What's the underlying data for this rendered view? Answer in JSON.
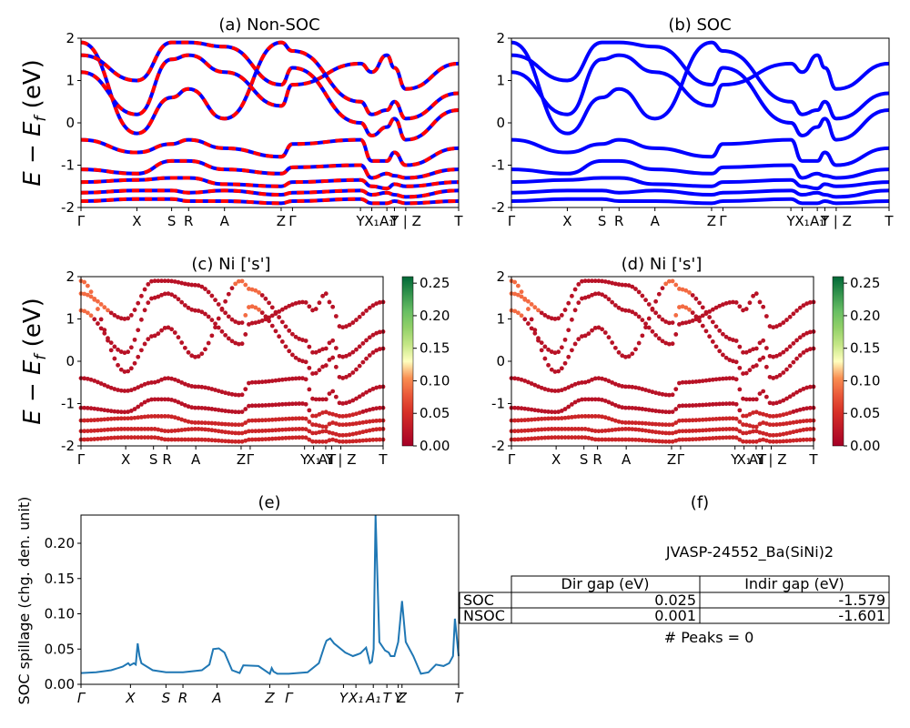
{
  "panels": {
    "a": {
      "title": "(a) Non-SOC"
    },
    "b": {
      "title": "(b) SOC"
    },
    "c": {
      "title": "(c)  Ni ['s']"
    },
    "d": {
      "title": "(d) Ni ['s']"
    },
    "e": {
      "title": "(e)"
    },
    "f": {
      "title": "(f)"
    }
  },
  "band_ylabel": "E − E_f (eV)",
  "band_ylabel_main": "E − E",
  "band_ylabel_sub": "f",
  "band_ylabel_unit": " (eV)",
  "kpath_labels_band": [
    "Γ",
    "X",
    "S",
    "R",
    "A",
    "Z",
    "Γ",
    "Y",
    "X₁",
    "A₁",
    "T",
    "Y | Z",
    "T"
  ],
  "kpath_labels_spillage": [
    "Γ",
    "X",
    "S",
    "R",
    "A",
    "Z",
    "Γ",
    "Y",
    "X₁",
    "A₁",
    "T",
    "Y",
    "Z",
    "T"
  ],
  "colorbar": {
    "ticks": [
      "0.25",
      "0.20",
      "0.15",
      "0.10",
      "0.05",
      "0.00"
    ],
    "cmap": "RdYlGn"
  },
  "colors": {
    "non_soc_up": "#0000ff",
    "non_soc_dn": "#ff0000",
    "soc": "#0000ff",
    "spillage": "#1f77b4"
  },
  "table": {
    "material": "JVASP-24552_Ba(SiNi)2",
    "headers": [
      "",
      "Dir gap (eV)",
      "Indir gap (eV)"
    ],
    "rows": [
      {
        "label": "SOC",
        "dir": "0.025",
        "indir": "-1.579"
      },
      {
        "label": "NSOC",
        "dir": "0.001",
        "indir": "-1.601"
      }
    ],
    "peaks": "# Peaks = 0"
  },
  "chart_data": [
    {
      "type": "line",
      "title": "(a) Non-SOC",
      "ylabel": "E − E_f (eV)",
      "ylim": [
        -2,
        2
      ],
      "yticks": [
        -2,
        -1,
        0,
        1,
        2
      ],
      "x_labels": [
        "Γ",
        "X",
        "S",
        "R",
        "A",
        "Z",
        "Γ",
        "Y",
        "X₁",
        "A₁",
        "T",
        "Y | Z",
        "T"
      ],
      "x_label_positions": [
        0,
        0.148,
        0.24,
        0.285,
        0.38,
        0.53,
        0.56,
        0.74,
        0.77,
        0.81,
        0.83,
        0.86,
        1.0
      ],
      "series": [
        {
          "values_at_kpoints": [
            1.9,
            -0.25,
            0.6,
            0.8,
            0.1,
            1.9,
            1.7,
            0.5,
            0.2,
            0.3,
            0.5,
            0.1,
            0.7
          ]
        },
        {
          "values_at_kpoints": [
            1.2,
            0.2,
            1.5,
            1.6,
            1.2,
            0.4,
            0.9,
            1.4,
            1.2,
            1.6,
            1.3,
            0.8,
            1.4
          ]
        },
        {
          "values_at_kpoints": [
            -0.4,
            -0.7,
            -0.5,
            -0.4,
            -0.6,
            -0.8,
            -0.5,
            -0.4,
            -0.9,
            -0.9,
            -0.7,
            -1.0,
            -0.6
          ]
        },
        {
          "values_at_kpoints": [
            -1.1,
            -1.2,
            -0.9,
            -0.9,
            -1.1,
            -1.2,
            -1.05,
            -1.0,
            -1.3,
            -1.2,
            -1.25,
            -1.3,
            -1.1
          ]
        },
        {
          "values_at_kpoints": [
            -1.4,
            -1.35,
            -1.3,
            -1.3,
            -1.45,
            -1.5,
            -1.4,
            -1.35,
            -1.5,
            -1.55,
            -1.45,
            -1.5,
            -1.4
          ]
        },
        {
          "values_at_kpoints": [
            -1.65,
            -1.6,
            -1.6,
            -1.65,
            -1.6,
            -1.7,
            -1.65,
            -1.6,
            -1.7,
            -1.65,
            -1.7,
            -1.75,
            -1.6
          ]
        },
        {
          "values_at_kpoints": [
            -1.85,
            -1.8,
            -1.8,
            -1.85,
            -1.85,
            -1.9,
            -1.85,
            -1.8,
            -1.9,
            -1.9,
            -1.85,
            -1.9,
            -1.85
          ]
        },
        {
          "values_at_kpoints": [
            1.6,
            1.0,
            1.9,
            1.9,
            1.8,
            0.9,
            1.3,
            0.0,
            -0.3,
            -0.1,
            0.1,
            -0.4,
            0.3
          ]
        }
      ]
    },
    {
      "type": "line",
      "title": "(b) SOC",
      "ylim": [
        -2,
        2
      ],
      "yticks": [
        -2,
        -1,
        0,
        1,
        2
      ],
      "x_labels": [
        "Γ",
        "X",
        "S",
        "R",
        "A",
        "Z",
        "Γ",
        "Y",
        "X₁",
        "A₁",
        "T",
        "Y | Z",
        "T"
      ],
      "x_label_positions": [
        0,
        0.148,
        0.24,
        0.285,
        0.38,
        0.53,
        0.56,
        0.74,
        0.77,
        0.81,
        0.83,
        0.86,
        1.0
      ],
      "series": [
        {
          "values_at_kpoints": [
            1.9,
            -0.25,
            0.6,
            0.8,
            0.1,
            1.9,
            1.7,
            0.5,
            0.2,
            0.3,
            0.5,
            0.1,
            0.7
          ]
        },
        {
          "values_at_kpoints": [
            1.2,
            0.2,
            1.5,
            1.6,
            1.2,
            0.4,
            0.9,
            1.4,
            1.2,
            1.6,
            1.3,
            0.8,
            1.4
          ]
        },
        {
          "values_at_kpoints": [
            -0.4,
            -0.7,
            -0.5,
            -0.4,
            -0.6,
            -0.8,
            -0.5,
            -0.4,
            -0.9,
            -0.9,
            -0.7,
            -1.0,
            -0.6
          ]
        },
        {
          "values_at_kpoints": [
            -1.1,
            -1.2,
            -0.9,
            -0.9,
            -1.1,
            -1.2,
            -1.05,
            -1.0,
            -1.3,
            -1.2,
            -1.25,
            -1.3,
            -1.1
          ]
        },
        {
          "values_at_kpoints": [
            -1.4,
            -1.35,
            -1.3,
            -1.3,
            -1.45,
            -1.5,
            -1.4,
            -1.35,
            -1.5,
            -1.55,
            -1.45,
            -1.5,
            -1.4
          ]
        },
        {
          "values_at_kpoints": [
            -1.65,
            -1.6,
            -1.6,
            -1.65,
            -1.6,
            -1.7,
            -1.65,
            -1.6,
            -1.7,
            -1.65,
            -1.7,
            -1.75,
            -1.6
          ]
        },
        {
          "values_at_kpoints": [
            -1.85,
            -1.8,
            -1.8,
            -1.85,
            -1.85,
            -1.9,
            -1.85,
            -1.8,
            -1.9,
            -1.9,
            -1.85,
            -1.9,
            -1.85
          ]
        },
        {
          "values_at_kpoints": [
            1.6,
            1.0,
            1.9,
            1.9,
            1.8,
            0.9,
            1.3,
            0.0,
            -0.3,
            -0.1,
            0.1,
            -0.4,
            0.3
          ]
        }
      ]
    },
    {
      "type": "scatter",
      "title": "(c)  Ni ['s']",
      "ylim": [
        -2,
        2
      ],
      "colorbar_range": [
        0,
        0.26
      ],
      "x_labels": [
        "Γ",
        "X",
        "S",
        "R",
        "A",
        "Z",
        "Γ",
        "Y",
        "X₁",
        "A₁",
        "T",
        "Y | Z",
        "T"
      ]
    },
    {
      "type": "scatter",
      "title": "(d) Ni ['s']",
      "ylim": [
        -2,
        2
      ],
      "colorbar_range": [
        0,
        0.26
      ],
      "x_labels": [
        "Γ",
        "X",
        "S",
        "R",
        "A",
        "Z",
        "Γ",
        "Y",
        "X₁",
        "A₁",
        "T",
        "Y | Z",
        "T"
      ]
    },
    {
      "type": "line",
      "title": "(e)",
      "ylabel": "SOC spillage (chg. den. unit)",
      "ylim": [
        0,
        0.24
      ],
      "yticks": [
        0.0,
        0.05,
        0.1,
        0.15,
        0.2
      ],
      "x_labels": [
        "Γ",
        "X",
        "S",
        "R",
        "A",
        "Z",
        "Γ",
        "Y",
        "X₁",
        "A₁",
        "T",
        "Y",
        "Z",
        "T"
      ],
      "x_label_positions": [
        0,
        0.131,
        0.225,
        0.27,
        0.36,
        0.5,
        0.55,
        0.695,
        0.728,
        0.774,
        0.81,
        0.84,
        0.85,
        1.0
      ],
      "x": [
        0,
        0.04,
        0.08,
        0.11,
        0.125,
        0.13,
        0.14,
        0.145,
        0.15,
        0.155,
        0.16,
        0.19,
        0.225,
        0.27,
        0.32,
        0.34,
        0.35,
        0.365,
        0.38,
        0.4,
        0.42,
        0.43,
        0.47,
        0.5,
        0.505,
        0.51,
        0.52,
        0.55,
        0.6,
        0.63,
        0.645,
        0.65,
        0.66,
        0.67,
        0.7,
        0.72,
        0.73,
        0.74,
        0.755,
        0.765,
        0.77,
        0.775,
        0.78,
        0.79,
        0.805,
        0.815,
        0.82,
        0.83,
        0.84,
        0.85,
        0.86,
        0.88,
        0.9,
        0.92,
        0.94,
        0.96,
        0.975,
        0.985,
        0.99,
        1.0
      ],
      "values": [
        0.016,
        0.017,
        0.02,
        0.025,
        0.03,
        0.027,
        0.03,
        0.028,
        0.058,
        0.04,
        0.03,
        0.02,
        0.017,
        0.017,
        0.02,
        0.028,
        0.05,
        0.051,
        0.045,
        0.02,
        0.016,
        0.027,
        0.026,
        0.015,
        0.023,
        0.018,
        0.015,
        0.015,
        0.017,
        0.03,
        0.055,
        0.062,
        0.065,
        0.058,
        0.045,
        0.04,
        0.042,
        0.044,
        0.052,
        0.03,
        0.032,
        0.05,
        0.24,
        0.06,
        0.048,
        0.045,
        0.04,
        0.04,
        0.06,
        0.118,
        0.06,
        0.04,
        0.015,
        0.017,
        0.028,
        0.026,
        0.03,
        0.04,
        0.093,
        0.04
      ]
    }
  ]
}
